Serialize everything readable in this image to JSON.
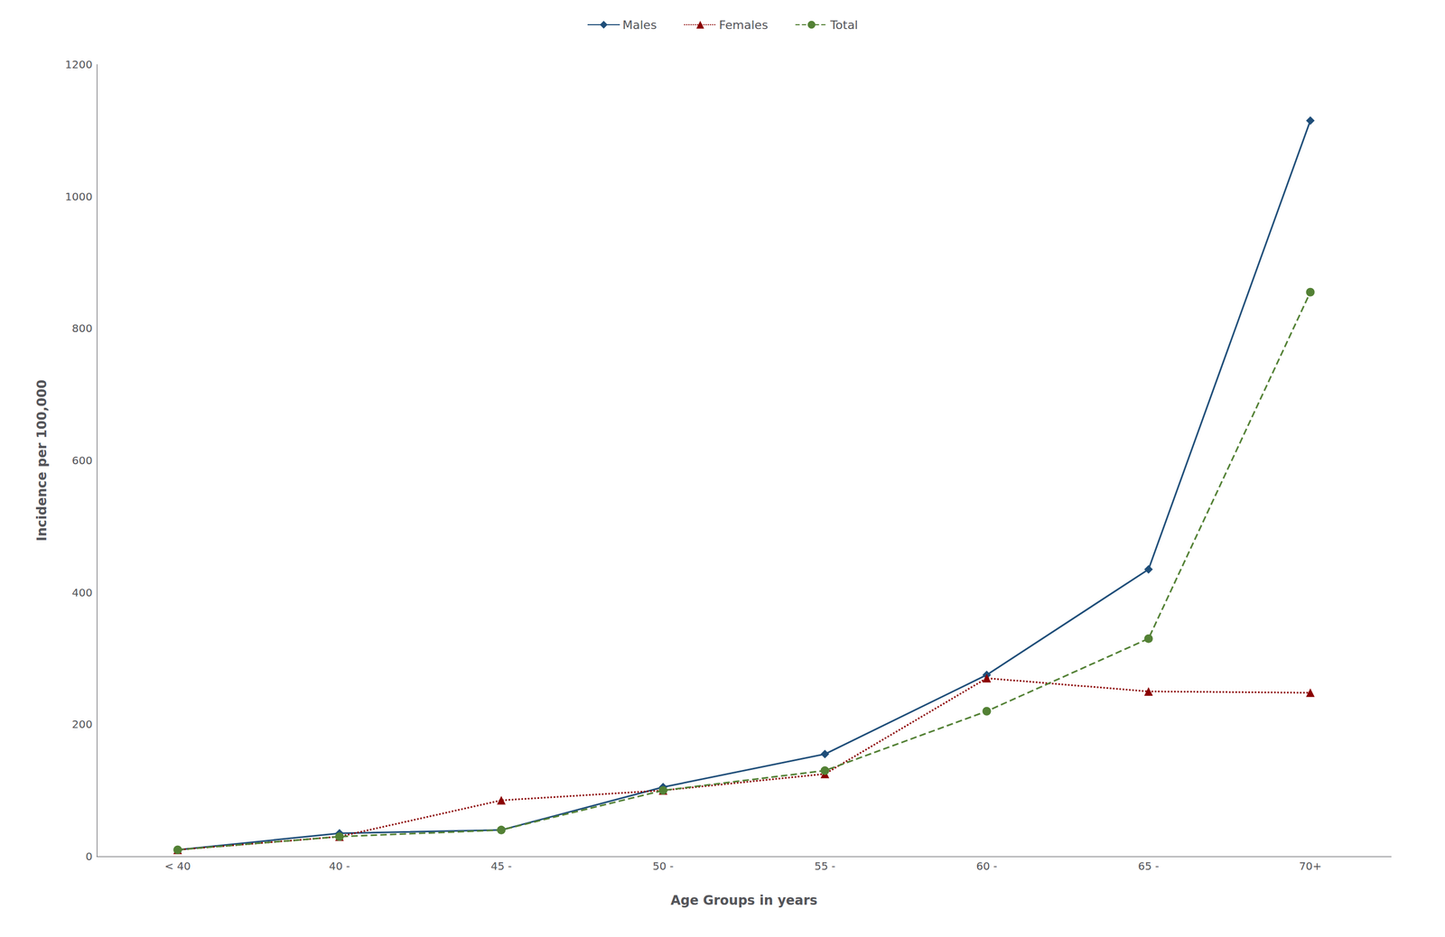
{
  "chart_data": {
    "type": "line",
    "categories": [
      "< 40",
      "40 -",
      "45 -",
      "50 -",
      "55 -",
      "60 -",
      "65 -",
      "70+"
    ],
    "series": [
      {
        "name": "Males",
        "color": "#1f4e79",
        "marker": "diamond",
        "line_style": "solid",
        "values": [
          10,
          35,
          40,
          105,
          155,
          275,
          435,
          1115
        ]
      },
      {
        "name": "Females",
        "color": "#8b0000",
        "marker": "triangle",
        "line_style": "dotted",
        "values": [
          10,
          30,
          85,
          100,
          125,
          270,
          250,
          248
        ]
      },
      {
        "name": "Total",
        "color": "#538135",
        "marker": "circle",
        "line_style": "dashed",
        "values": [
          10,
          30,
          40,
          100,
          130,
          220,
          330,
          855
        ]
      }
    ],
    "xlabel": "Age Groups in years",
    "ylabel": "Incidence per 100,000",
    "ylim": [
      0,
      1200
    ],
    "yticks": [
      0,
      200,
      400,
      600,
      800,
      1000,
      1200
    ],
    "grid": false,
    "legend": "top"
  }
}
